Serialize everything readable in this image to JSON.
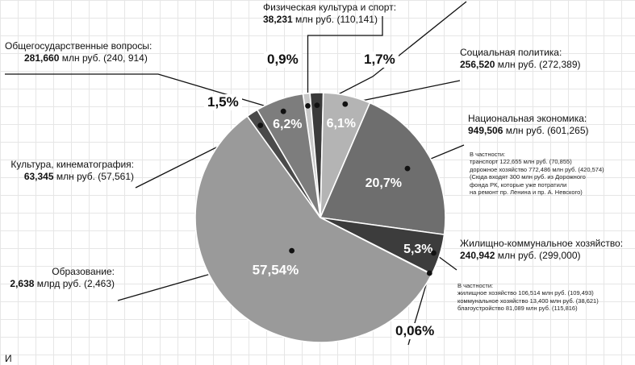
{
  "chart_data": {
    "type": "pie",
    "slices": [
      {
        "label": "Физическая культура и спорт",
        "percent": 0.9,
        "value": "38,231",
        "unit": "млн руб.",
        "previous": "110,141",
        "color": "#c8c8c8"
      },
      {
        "label": "",
        "percent": 1.7,
        "value": "",
        "unit": "",
        "previous": "",
        "color": "#3a3a3a"
      },
      {
        "label": "Социальная политика",
        "percent": 6.1,
        "value": "256,520",
        "unit": "млн руб.",
        "previous": "272,389",
        "color": "#b4b4b4"
      },
      {
        "label": "Национальная экономика",
        "percent": 20.7,
        "value": "949,506",
        "unit": "млн руб.",
        "previous": "601,265",
        "color": "#6e6e6e"
      },
      {
        "label": "Жилищно-коммунальное хозяйство",
        "percent": 5.3,
        "value": "240,942",
        "unit": "млн руб.",
        "previous": "299,000",
        "color": "#3c3c3c"
      },
      {
        "label": "",
        "percent": 0.06,
        "value": "",
        "unit": "",
        "previous": "",
        "color": "#dddddd"
      },
      {
        "label": "Образование",
        "percent": 57.54,
        "value": "2,638",
        "unit": "млрд руб.",
        "previous": "2,463",
        "color": "#9a9a9a"
      },
      {
        "label": "Культура, кинематография",
        "percent": 1.5,
        "value": "63,345",
        "unit": "млн руб.",
        "previous": "57,561",
        "color": "#4a4a4a"
      },
      {
        "label": "Общегосударственные вопросы",
        "percent": 6.2,
        "value": "281,660",
        "unit": "млн руб.",
        "previous": "240, 914",
        "color": "#7d7d7d"
      }
    ],
    "percent_labels": [
      "0,9%",
      "1,7%",
      "6,1%",
      "20,7%",
      "5,3%",
      "0,06%",
      "57,54%",
      "1,5%",
      "6,2%"
    ]
  },
  "labels": {
    "sport": {
      "name": "Физическая культура и спорт:",
      "value": "38,231",
      "rest": " млн руб. (110,141)"
    },
    "general": {
      "name": "Общегосударственные вопросы:",
      "value": "281,660",
      "rest": " млн руб. (240, 914)"
    },
    "social": {
      "name": "Социальная политика:",
      "value": "256,520",
      "rest": " млн руб. (272,389)"
    },
    "economy": {
      "name": "Национальная экономика:",
      "value": "949,506",
      "rest": " млн руб. (601,265)"
    },
    "culture": {
      "name": "Культура, кинематография:",
      "value": "63,345",
      "rest": " млн руб. (57,561)"
    },
    "housing": {
      "name": "Жилищно-коммунальное хозяйство:",
      "value": "240,942",
      "rest": " млн руб. (299,000)"
    },
    "education": {
      "name": "Образование:",
      "value": "2,638",
      "rest": " млрд руб. (2,463)"
    }
  },
  "notes": {
    "economy": [
      "В частности:",
      "транспорт 122,655 млн руб. (70,855)",
      "дорожное хозяйство 772,486 млн руб. (420,574)",
      "(Сюда входят 300 млн руб. из Дорожного",
      "фонда РК, которые уже потратили",
      "на ремонт пр. Ленина и пр. А. Невского)"
    ],
    "housing": [
      "В частности:",
      "жилищное хозяйство 106,514 млн руб. (109,493)",
      "коммунальное хозяйство 13,400 млн руб. (38,621)",
      "благоустройство 81,089 млн руб. (115,816)"
    ]
  },
  "bottom_fragment": "И"
}
